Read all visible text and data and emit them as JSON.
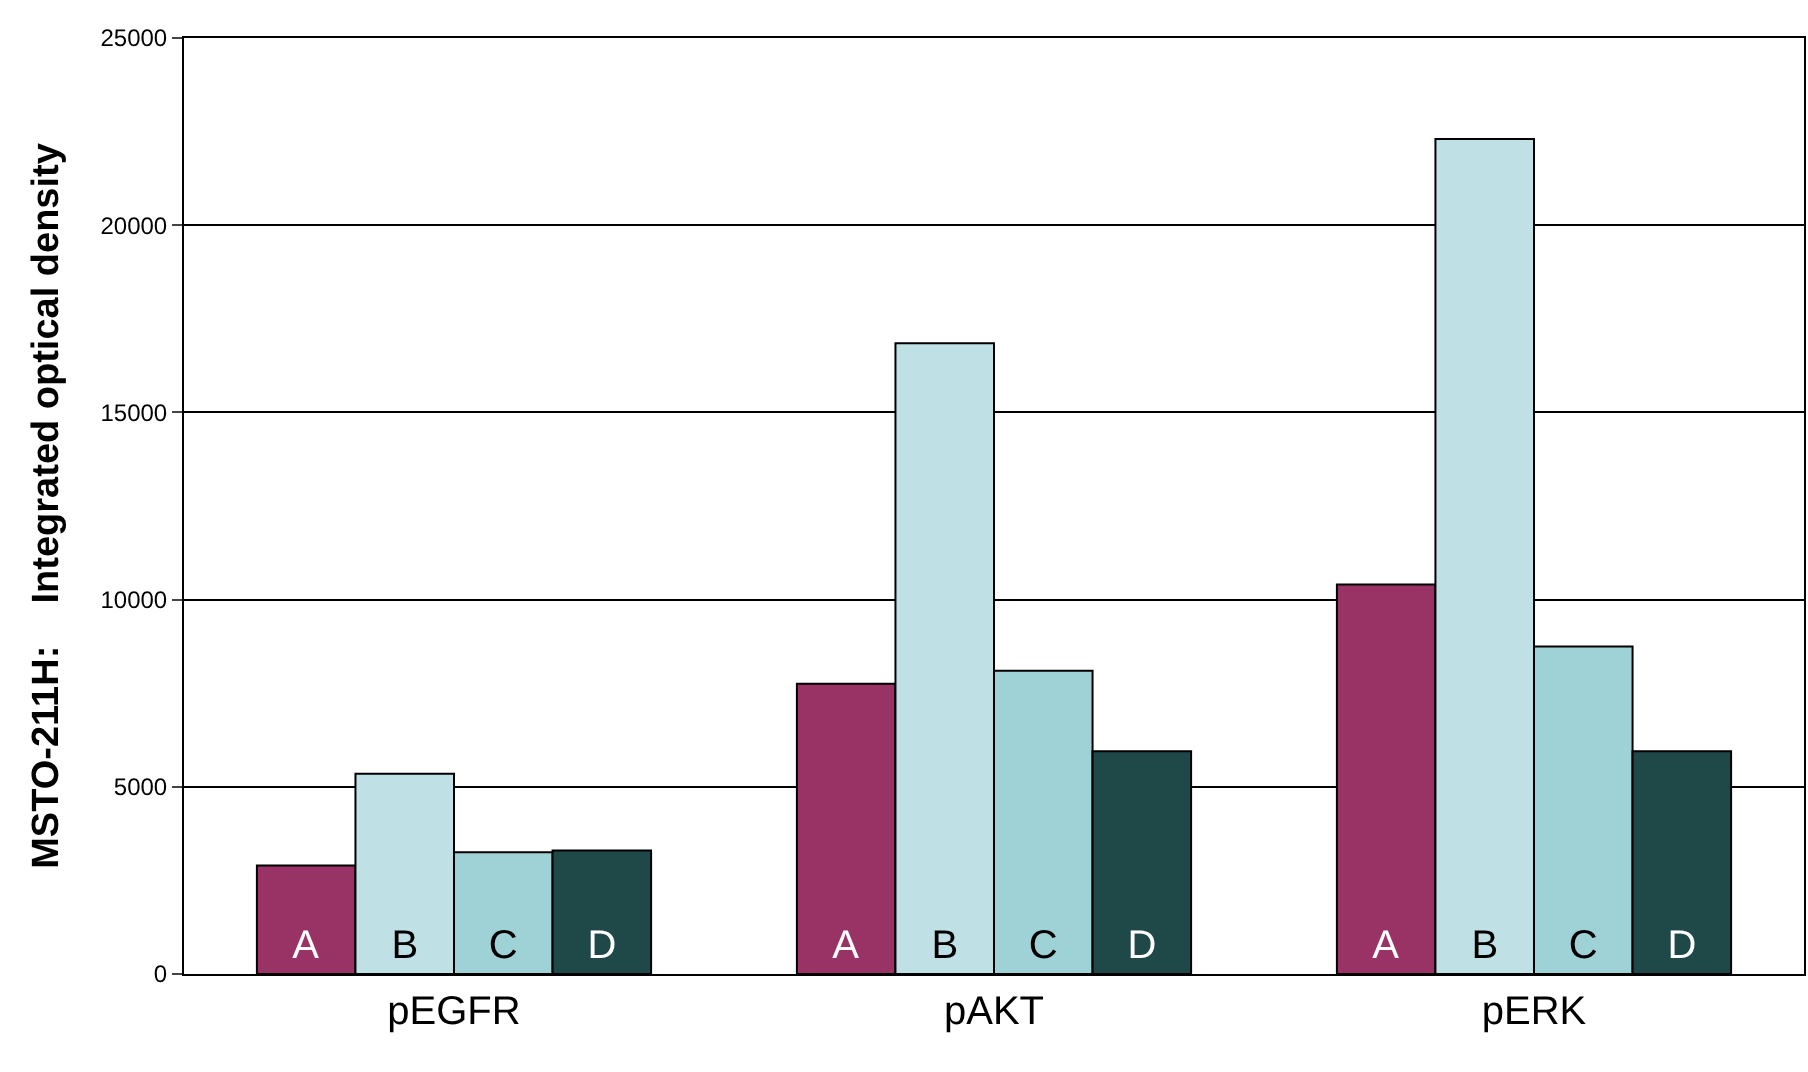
{
  "chart_data": {
    "type": "bar",
    "ylabel": "MSTO-211H:    Integrated optical density",
    "categories": [
      "pEGFR",
      "pAKT",
      "pERK"
    ],
    "series": [
      {
        "name": "A",
        "color": "#993366",
        "values": [
          2900,
          7750,
          10400
        ]
      },
      {
        "name": "B",
        "color": "#bfe0e4",
        "values": [
          5350,
          16850,
          22300
        ]
      },
      {
        "name": "C",
        "color": "#9fd2d6",
        "values": [
          3250,
          8100,
          8750
        ]
      },
      {
        "name": "D",
        "color": "#1f4848",
        "values": [
          3300,
          5950,
          5950
        ]
      }
    ],
    "ylim": [
      0,
      25000
    ],
    "yticks": [
      0,
      5000,
      10000,
      15000,
      20000,
      25000
    ],
    "grid": "y",
    "legend": false
  }
}
